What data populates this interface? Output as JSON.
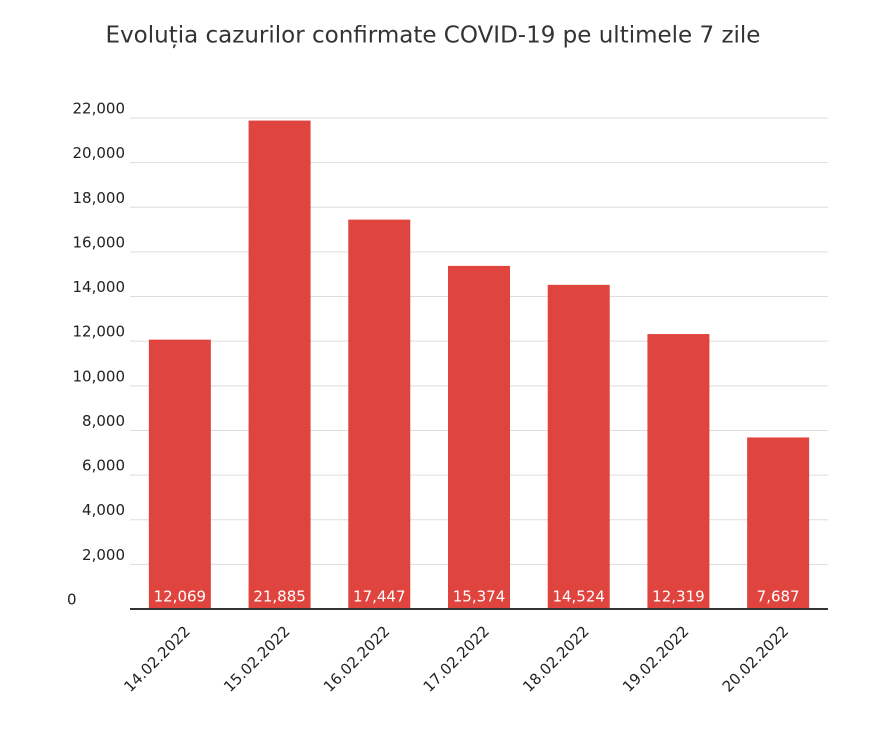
{
  "chart_data": {
    "type": "bar",
    "title": "Evoluția cazurilor confirmate COVID-19 pe ultimele 7 zile",
    "categories": [
      "14.02.2022",
      "15.02.2022",
      "16.02.2022",
      "17.02.2022",
      "18.02.2022",
      "19.02.2022",
      "20.02.2022"
    ],
    "values": [
      12069,
      21885,
      17447,
      15374,
      14524,
      12319,
      7687
    ],
    "value_labels": [
      "12,069",
      "21,885",
      "17,447",
      "15,374",
      "14,524",
      "12,319",
      "7,687"
    ],
    "color": "#e0443f",
    "ylim": [
      0,
      22000
    ],
    "yticks": [
      0,
      {
        "value": 2000,
        "label": "2,000"
      },
      {
        "value": 4000,
        "label": "4,000"
      },
      {
        "value": 6000,
        "label": "6,000"
      },
      {
        "value": 8000,
        "label": "8,000"
      },
      {
        "value": 10000,
        "label": "10,000"
      },
      {
        "value": 12000,
        "label": "12,000"
      },
      {
        "value": 14000,
        "label": "14,000"
      },
      {
        "value": 16000,
        "label": "16,000"
      },
      {
        "value": 18000,
        "label": "18,000"
      },
      {
        "value": 20000,
        "label": "20,000"
      },
      {
        "value": 22000,
        "label": "22,000"
      }
    ],
    "grid": true
  }
}
